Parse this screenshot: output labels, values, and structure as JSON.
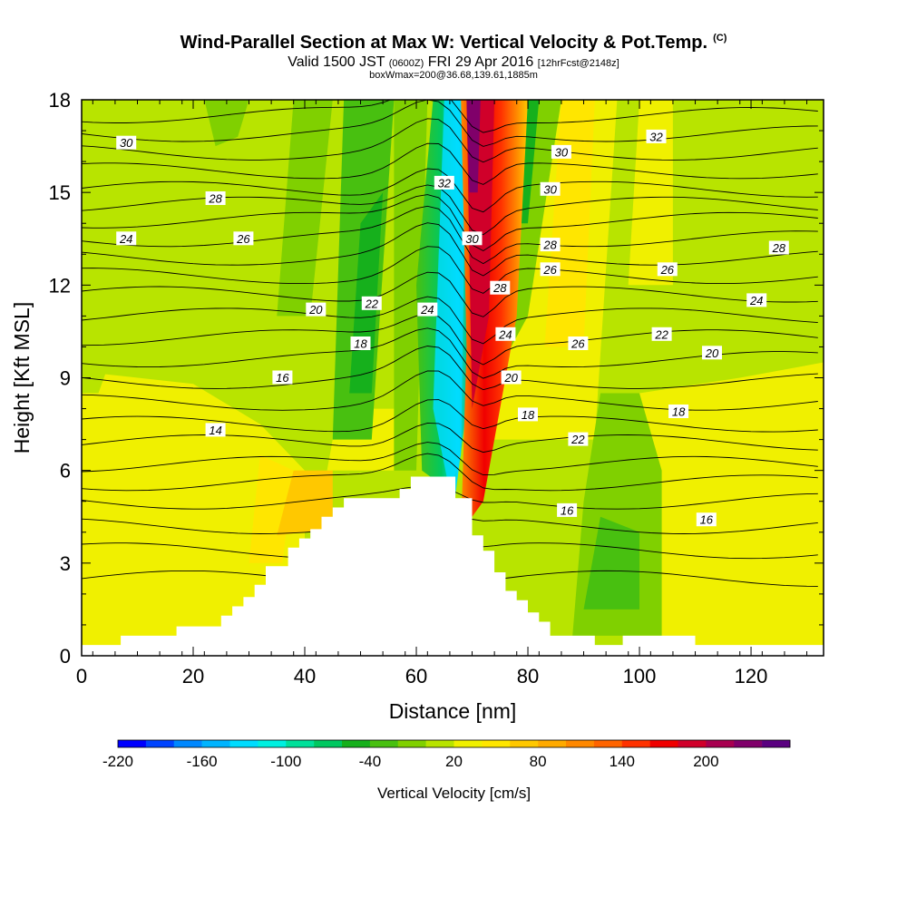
{
  "header": {
    "title": "Wind-Parallel Section at Max W: Vertical Velocity & Pot.Temp.",
    "copyright": "(C)",
    "valid_prefix": "Valid 1500 JST",
    "valid_utc": "(0600Z)",
    "valid_date": "FRI 29 Apr 2016",
    "forecast": "[12hrFcst@2148z]",
    "box_info": "boxWmax=200@36.68,139.61,1885m"
  },
  "chart_data": {
    "type": "heatmap",
    "xlabel": "Distance [nm]",
    "ylabel": "Height [Kft MSL]",
    "xlim": [
      0,
      133
    ],
    "ylim": [
      0,
      18
    ],
    "x_ticks": [
      "0",
      "20",
      "40",
      "60",
      "80",
      "100",
      "120"
    ],
    "y_ticks": [
      "0",
      "3",
      "6",
      "9",
      "12",
      "15",
      "18"
    ],
    "colorbar": {
      "label": "Vertical Velocity [cm/s]",
      "tick_labels": [
        "-220",
        "-160",
        "-100",
        "-40",
        "20",
        "80",
        "140",
        "200"
      ],
      "colors": [
        "#0000ff",
        "#0044ff",
        "#0088ff",
        "#00b4ff",
        "#00dcff",
        "#00f0e0",
        "#00e09a",
        "#00c860",
        "#16b01c",
        "#48c010",
        "#80d000",
        "#b8e400",
        "#f0f000",
        "#ffe600",
        "#ffc800",
        "#ffaa00",
        "#ff8800",
        "#ff6400",
        "#ff3200",
        "#f00000",
        "#d0002a",
        "#a80050",
        "#80006a",
        "#5a0080"
      ]
    },
    "theta_contour_labels": [
      {
        "text": "30",
        "x": 8,
        "y": 16.6
      },
      {
        "text": "28",
        "x": 24,
        "y": 14.8
      },
      {
        "text": "24",
        "x": 8,
        "y": 13.5
      },
      {
        "text": "26",
        "x": 29,
        "y": 13.5
      },
      {
        "text": "32",
        "x": 65,
        "y": 15.3
      },
      {
        "text": "30",
        "x": 86,
        "y": 16.3
      },
      {
        "text": "32",
        "x": 103,
        "y": 16.8
      },
      {
        "text": "30",
        "x": 84,
        "y": 15.1
      },
      {
        "text": "30",
        "x": 70,
        "y": 13.5
      },
      {
        "text": "28",
        "x": 84,
        "y": 13.3
      },
      {
        "text": "26",
        "x": 84,
        "y": 12.5
      },
      {
        "text": "26",
        "x": 105,
        "y": 12.5
      },
      {
        "text": "28",
        "x": 125,
        "y": 13.2
      },
      {
        "text": "22",
        "x": 52,
        "y": 11.4
      },
      {
        "text": "24",
        "x": 62,
        "y": 11.2
      },
      {
        "text": "28",
        "x": 75,
        "y": 11.9
      },
      {
        "text": "24",
        "x": 121,
        "y": 11.5
      },
      {
        "text": "20",
        "x": 42,
        "y": 11.2
      },
      {
        "text": "18",
        "x": 50,
        "y": 10.1
      },
      {
        "text": "24",
        "x": 76,
        "y": 10.4
      },
      {
        "text": "26",
        "x": 89,
        "y": 10.1
      },
      {
        "text": "22",
        "x": 104,
        "y": 10.4
      },
      {
        "text": "20",
        "x": 113,
        "y": 9.8
      },
      {
        "text": "16",
        "x": 36,
        "y": 9.0
      },
      {
        "text": "20",
        "x": 77,
        "y": 9.0
      },
      {
        "text": "18",
        "x": 80,
        "y": 7.8
      },
      {
        "text": "22",
        "x": 89,
        "y": 7.0
      },
      {
        "text": "18",
        "x": 107,
        "y": 7.9
      },
      {
        "text": "14",
        "x": 24,
        "y": 7.3
      },
      {
        "text": "16",
        "x": 87,
        "y": 4.7
      },
      {
        "text": "16",
        "x": 112,
        "y": 4.4
      }
    ],
    "terrain_nm_kft": [
      [
        0,
        0.35
      ],
      [
        7,
        0.35
      ],
      [
        7,
        0.65
      ],
      [
        17,
        0.65
      ],
      [
        17,
        0.95
      ],
      [
        25,
        0.95
      ],
      [
        25,
        1.3
      ],
      [
        27,
        1.3
      ],
      [
        27,
        1.6
      ],
      [
        29,
        1.6
      ],
      [
        29,
        1.9
      ],
      [
        31,
        1.9
      ],
      [
        31,
        2.3
      ],
      [
        33,
        2.3
      ],
      [
        33,
        2.9
      ],
      [
        37,
        2.9
      ],
      [
        37,
        3.5
      ],
      [
        39,
        3.5
      ],
      [
        39,
        3.8
      ],
      [
        41,
        3.8
      ],
      [
        41,
        4.1
      ],
      [
        43,
        4.1
      ],
      [
        43,
        4.5
      ],
      [
        45,
        4.5
      ],
      [
        45,
        4.8
      ],
      [
        47,
        4.8
      ],
      [
        47,
        5.1
      ],
      [
        57,
        5.1
      ],
      [
        57,
        5.4
      ],
      [
        59,
        5.4
      ],
      [
        59,
        5.8
      ],
      [
        67,
        5.8
      ],
      [
        67,
        5.1
      ],
      [
        70,
        5.1
      ],
      [
        70,
        3.9
      ],
      [
        72,
        3.9
      ],
      [
        72,
        3.4
      ],
      [
        74,
        3.4
      ],
      [
        74,
        2.7
      ],
      [
        76,
        2.7
      ],
      [
        76,
        2.1
      ],
      [
        78,
        2.1
      ],
      [
        78,
        1.8
      ],
      [
        80,
        1.8
      ],
      [
        80,
        1.4
      ],
      [
        82,
        1.4
      ],
      [
        82,
        1.1
      ],
      [
        84,
        1.1
      ],
      [
        84,
        0.65
      ],
      [
        92,
        0.65
      ],
      [
        92,
        0.35
      ],
      [
        97,
        0.35
      ],
      [
        97,
        0.65
      ],
      [
        110,
        0.65
      ],
      [
        110,
        0.35
      ],
      [
        133,
        0.35
      ]
    ]
  }
}
